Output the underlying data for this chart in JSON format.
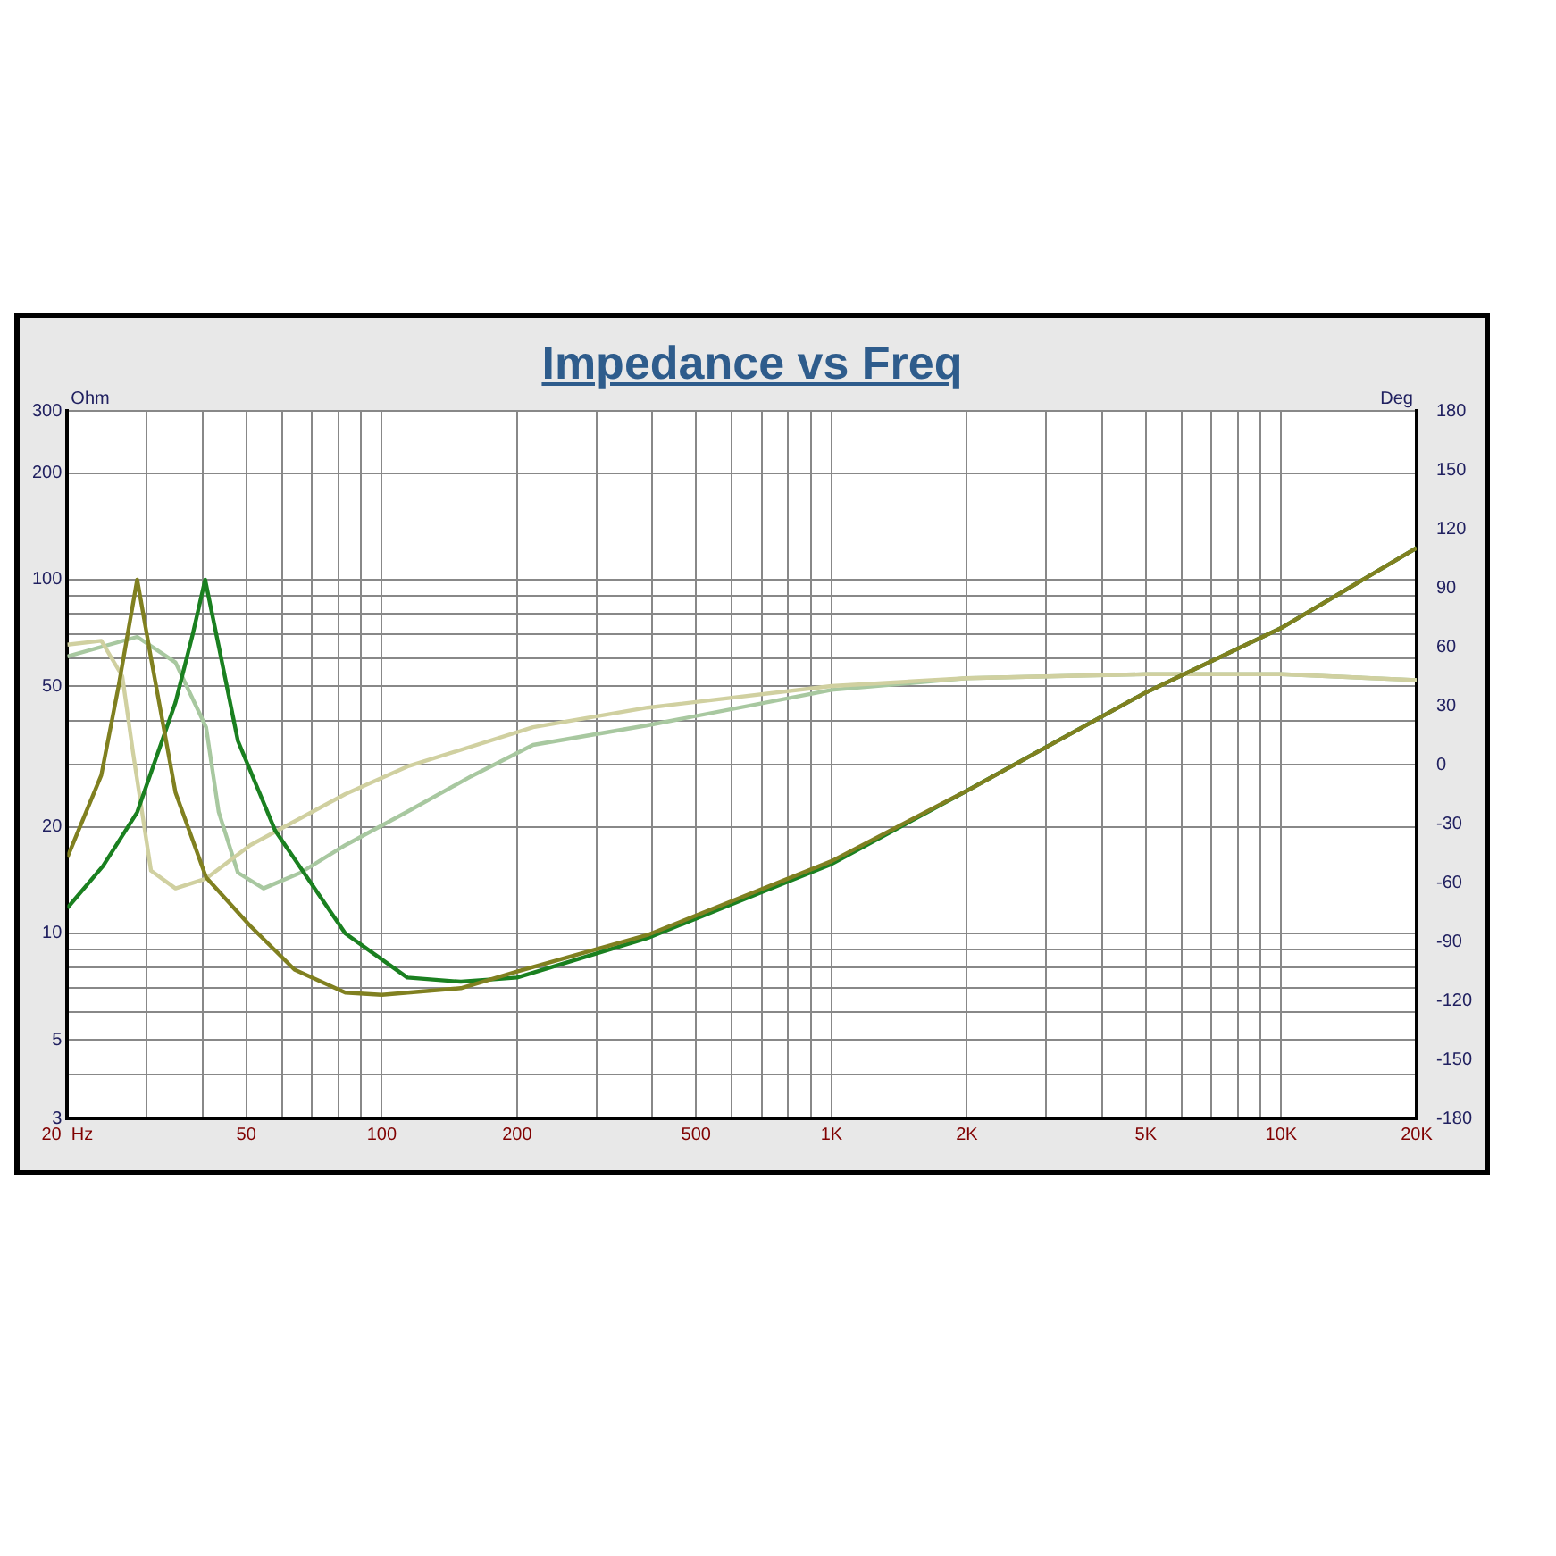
{
  "chart_data": {
    "type": "line",
    "title": "Impedance vs Freq",
    "ylabel": "Ohm",
    "y2label": "Deg",
    "log": "xy",
    "grid": true,
    "legend": false,
    "marker": "none",
    "line_style": "solid",
    "xlim": [
      20,
      20000
    ],
    "xticks": [
      {
        "value": 20,
        "label": "20  Hz"
      },
      {
        "value": 30,
        "label": null
      },
      {
        "value": 40,
        "label": null
      },
      {
        "value": 50,
        "label": "50"
      },
      {
        "value": 60,
        "label": null
      },
      {
        "value": 70,
        "label": null
      },
      {
        "value": 80,
        "label": null
      },
      {
        "value": 90,
        "label": null
      },
      {
        "value": 100,
        "label": "100"
      },
      {
        "value": 200,
        "label": "200"
      },
      {
        "value": 300,
        "label": null
      },
      {
        "value": 400,
        "label": null
      },
      {
        "value": 500,
        "label": "500"
      },
      {
        "value": 600,
        "label": null
      },
      {
        "value": 700,
        "label": null
      },
      {
        "value": 800,
        "label": null
      },
      {
        "value": 900,
        "label": null
      },
      {
        "value": 1000,
        "label": "1K"
      },
      {
        "value": 2000,
        "label": "2K"
      },
      {
        "value": 3000,
        "label": null
      },
      {
        "value": 4000,
        "label": null
      },
      {
        "value": 5000,
        "label": "5K"
      },
      {
        "value": 6000,
        "label": null
      },
      {
        "value": 7000,
        "label": null
      },
      {
        "value": 8000,
        "label": null
      },
      {
        "value": 9000,
        "label": null
      },
      {
        "value": 10000,
        "label": "10K"
      },
      {
        "value": 20000,
        "label": "20K"
      }
    ],
    "ylim": [
      3,
      300
    ],
    "yticks": [
      3,
      {
        "value": 4,
        "label": null
      },
      5,
      {
        "value": 6,
        "label": null
      },
      {
        "value": 7,
        "label": null
      },
      {
        "value": 8,
        "label": null
      },
      {
        "value": 9,
        "label": null
      },
      10,
      20,
      {
        "value": 30,
        "label": null
      },
      {
        "value": 40,
        "label": null
      },
      50,
      {
        "value": 60,
        "label": null
      },
      {
        "value": 70,
        "label": null
      },
      {
        "value": 80,
        "label": null
      },
      {
        "value": 90,
        "label": null
      },
      100,
      200,
      300
    ],
    "y2lim": [
      -180,
      180
    ],
    "y2ticks": [
      -180,
      -150,
      -120,
      -90,
      -60,
      -30,
      0,
      30,
      60,
      90,
      120,
      150,
      180
    ],
    "series": [
      {
        "color": "#808020",
        "x": [
          20,
          23.8,
          26,
          28.6,
          30.7,
          34.8,
          40.7,
          51,
          64,
          83,
          100,
          150,
          200,
          390,
          1000,
          2000,
          5000,
          10000,
          20000
        ],
        "values": [
          16.4,
          28,
          50,
          100,
          60,
          25,
          14.4,
          10.5,
          7.9,
          6.8,
          6.7,
          7,
          7.8,
          9.9,
          16,
          25.3,
          48,
          73,
          123
        ]
      },
      {
        "color": "#1a8020",
        "x": [
          20,
          24,
          28.6,
          34.8,
          38,
          40.5,
          43.4,
          47.9,
          58,
          83,
          114,
          150,
          200,
          390,
          1000,
          2000,
          5000,
          10000,
          20000
        ],
        "values": [
          11.8,
          15.5,
          22,
          45,
          70,
          100,
          65,
          35,
          19.5,
          10,
          7.5,
          7.3,
          7.5,
          9.7,
          15.7,
          25.3,
          48,
          73,
          123
        ]
      },
      {
        "axis": "y2",
        "color": "#d0d0a0",
        "x": [
          20,
          23.8,
          26.5,
          28,
          30.7,
          34.8,
          40.7,
          51,
          83,
          114,
          217,
          390,
          1000,
          2000,
          5000,
          10000,
          20000
        ],
        "values": [
          61,
          63,
          45,
          6,
          -54,
          -63,
          -58,
          -41,
          -15,
          -1,
          19,
          29,
          40,
          44,
          46,
          46,
          43
        ]
      },
      {
        "axis": "y2",
        "color": "#a8c8a0",
        "x": [
          20,
          28.6,
          34.8,
          40.7,
          43.4,
          47.9,
          54.6,
          66,
          83,
          114,
          158,
          217,
          390,
          1000,
          2000,
          5000,
          10000,
          20000
        ],
        "values": [
          55,
          65,
          52,
          19,
          -24,
          -55,
          -63,
          -55,
          -41,
          -24,
          -6,
          10,
          20,
          38,
          44,
          46,
          46,
          43
        ]
      }
    ]
  }
}
